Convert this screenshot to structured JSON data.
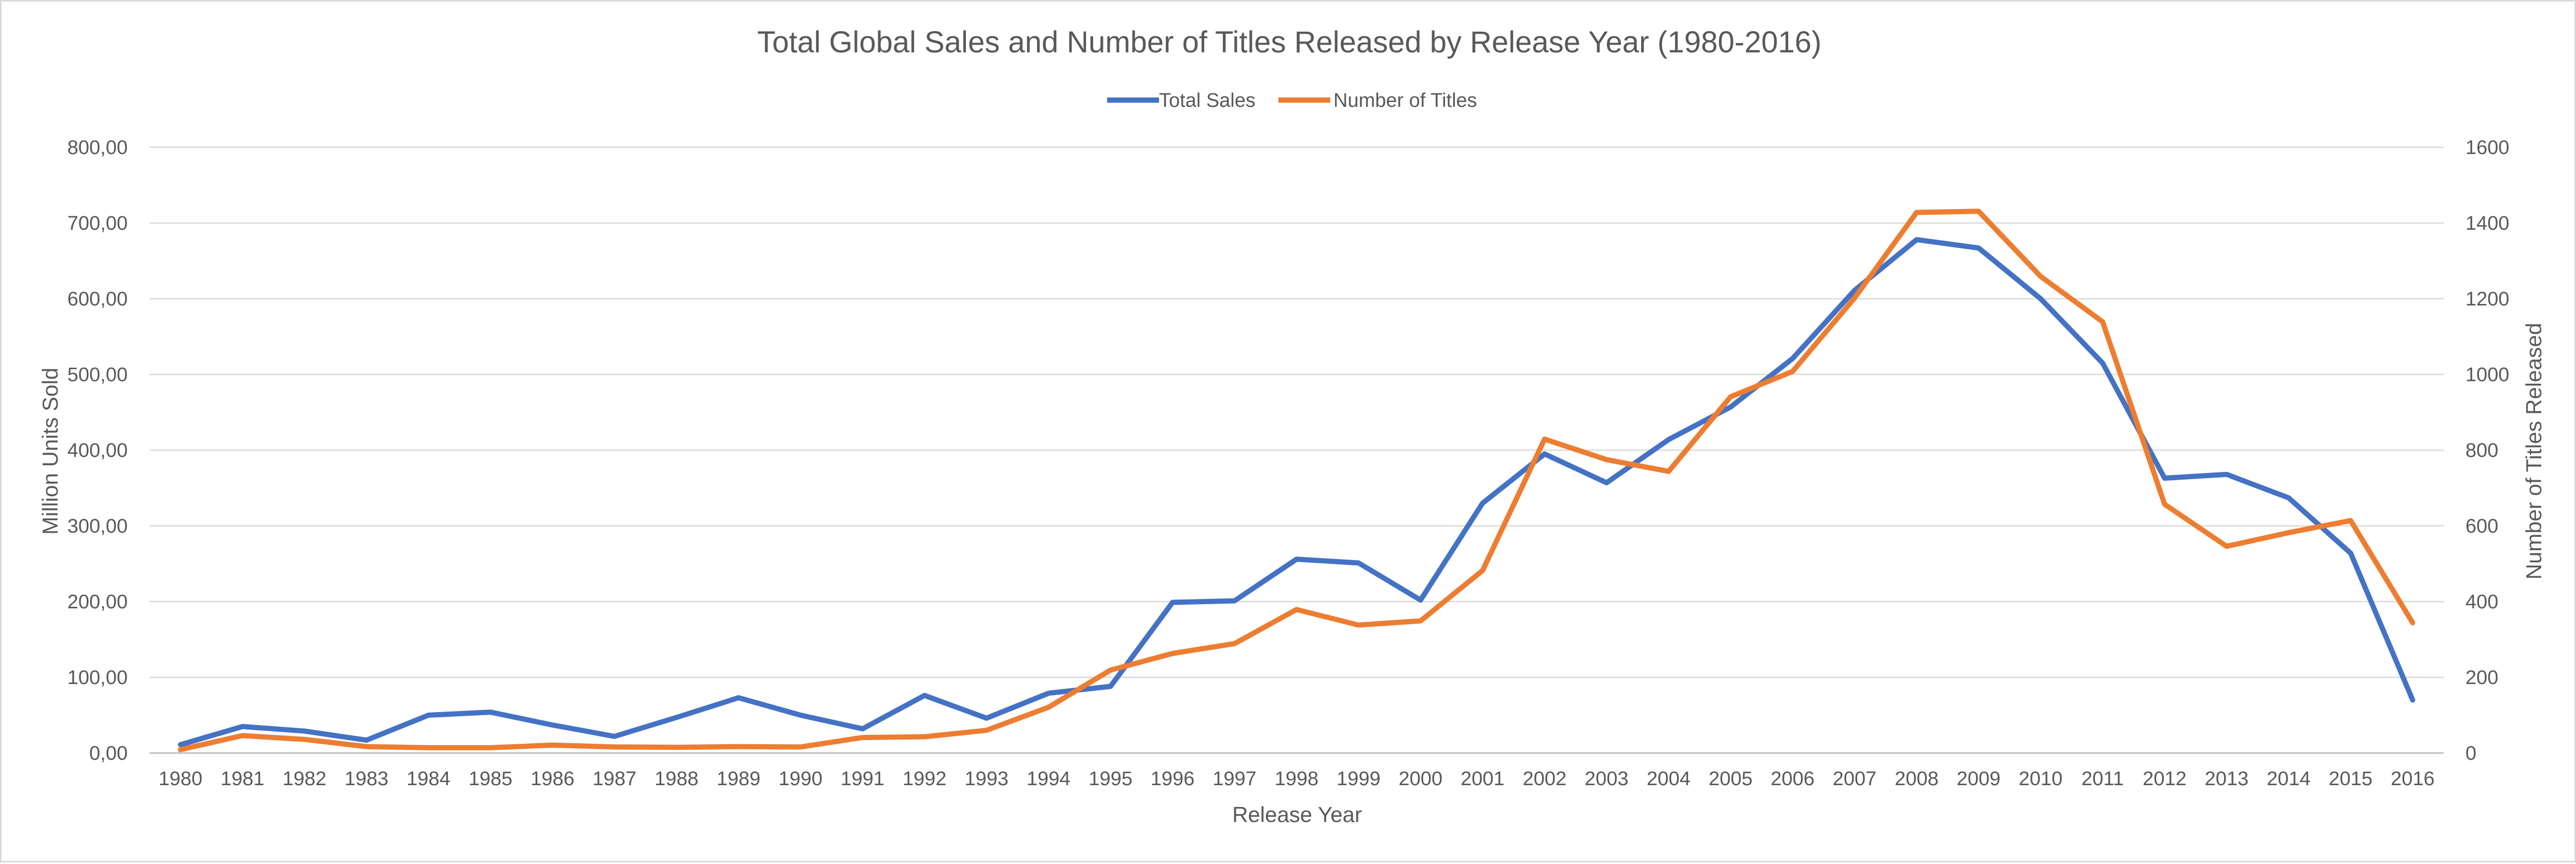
{
  "chart_data": {
    "type": "line",
    "title": "Total Global Sales and Number of Titles Released by Release Year (1980-2016)",
    "xlabel": "Release Year",
    "ylabel": "Million Units Sold",
    "y2label": "Number of Titles Released",
    "ylim": [
      0,
      800
    ],
    "y2lim": [
      0,
      1600
    ],
    "yticks": [
      "0,00",
      "100,00",
      "200,00",
      "300,00",
      "400,00",
      "500,00",
      "600,00",
      "700,00",
      "800,00"
    ],
    "y2ticks": [
      "0",
      "200",
      "400",
      "600",
      "800",
      "1000",
      "1200",
      "1400",
      "1600"
    ],
    "grid": true,
    "legend_position": "top-center",
    "categories": [
      "1980",
      "1981",
      "1982",
      "1983",
      "1984",
      "1985",
      "1986",
      "1987",
      "1988",
      "1989",
      "1990",
      "1991",
      "1992",
      "1993",
      "1994",
      "1995",
      "1996",
      "1997",
      "1998",
      "1999",
      "2000",
      "2001",
      "2002",
      "2003",
      "2004",
      "2005",
      "2006",
      "2007",
      "2008",
      "2009",
      "2010",
      "2011",
      "2012",
      "2013",
      "2014",
      "2015",
      "2016"
    ],
    "series": [
      {
        "name": "Total Sales",
        "axis": "left",
        "color": "#4472c4",
        "values": [
          11,
          35,
          29,
          17,
          50,
          54,
          37,
          22,
          47,
          73,
          50,
          32,
          76,
          46,
          79,
          88,
          199,
          201,
          256,
          251,
          202,
          330,
          395,
          357,
          414,
          457,
          521,
          611,
          678,
          667,
          600,
          515,
          363,
          368,
          337,
          264,
          70
        ]
      },
      {
        "name": "Number of Titles",
        "axis": "right",
        "color": "#ed7d31",
        "values": [
          9,
          46,
          36,
          17,
          14,
          14,
          21,
          16,
          15,
          17,
          16,
          41,
          43,
          60,
          121,
          219,
          263,
          289,
          379,
          338,
          349,
          482,
          829,
          775,
          744,
          941,
          1008,
          1202,
          1428,
          1431,
          1259,
          1139,
          657,
          546,
          582,
          614,
          344
        ]
      }
    ]
  }
}
